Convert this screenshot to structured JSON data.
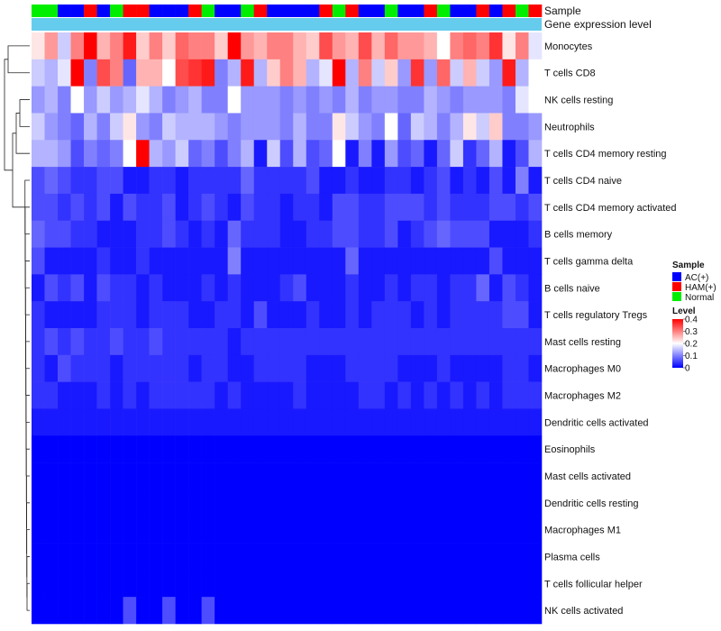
{
  "chart_data": {
    "type": "heatmap",
    "title": "",
    "annotation_tracks": [
      {
        "key": "sample",
        "label": "Sample"
      },
      {
        "key": "gene",
        "label": "Gene expression level"
      }
    ],
    "column_samples": [
      "Normal",
      "Normal",
      "AC(+)",
      "AC(+)",
      "HAM(+)",
      "AC(+)",
      "Normal",
      "HAM(+)",
      "HAM(+)",
      "AC(+)",
      "AC(+)",
      "AC(+)",
      "HAM(+)",
      "Normal",
      "AC(+)",
      "AC(+)",
      "Normal",
      "HAM(+)",
      "AC(+)",
      "AC(+)",
      "AC(+)",
      "AC(+)",
      "HAM(+)",
      "Normal",
      "HAM(+)",
      "AC(+)",
      "AC(+)",
      "Normal",
      "AC(+)",
      "AC(+)",
      "HAM(+)",
      "Normal",
      "AC(+)",
      "AC(+)",
      "HAM(+)",
      "AC(+)",
      "HAM(+)",
      "Normal",
      "HAM(+)"
    ],
    "rows": [
      "Monocytes",
      "T cells CD8",
      "NK cells resting",
      "Neutrophils",
      "T cells CD4 memory resting",
      "T cells CD4 naive",
      "T cells CD4 memory activated",
      "B cells memory",
      "T cells gamma delta",
      "B cells naive",
      "T cells regulatory  Tregs",
      "Mast cells resting",
      "Macrophages M0",
      "Macrophages M2",
      "Dendritic cells activated",
      "Eosinophils",
      "Mast cells activated",
      "Dendritic cells resting",
      "Macrophages M1",
      "Plasma cells",
      "T cells follicular helper",
      "NK cells activated"
    ],
    "values": [
      [
        0.22,
        0.28,
        0.16,
        0.3,
        0.4,
        0.26,
        0.3,
        0.38,
        0.24,
        0.3,
        0.24,
        0.32,
        0.3,
        0.3,
        0.24,
        0.4,
        0.28,
        0.26,
        0.3,
        0.3,
        0.26,
        0.24,
        0.34,
        0.28,
        0.26,
        0.34,
        0.26,
        0.32,
        0.28,
        0.28,
        0.26,
        0.2,
        0.3,
        0.32,
        0.3,
        0.36,
        0.22,
        0.3,
        0.18
      ],
      [
        0.16,
        0.14,
        0.18,
        0.4,
        0.1,
        0.34,
        0.3,
        0.08,
        0.26,
        0.26,
        0.2,
        0.34,
        0.36,
        0.38,
        0.1,
        0.14,
        0.38,
        0.14,
        0.24,
        0.3,
        0.26,
        0.14,
        0.18,
        0.4,
        0.14,
        0.3,
        0.16,
        0.24,
        0.12,
        0.36,
        0.12,
        0.32,
        0.16,
        0.26,
        0.16,
        0.12,
        0.38,
        0.14,
        0.2
      ],
      [
        0.12,
        0.14,
        0.1,
        0.2,
        0.12,
        0.16,
        0.12,
        0.14,
        0.18,
        0.14,
        0.1,
        0.12,
        0.14,
        0.1,
        0.1,
        0.2,
        0.12,
        0.12,
        0.12,
        0.1,
        0.12,
        0.1,
        0.12,
        0.1,
        0.14,
        0.1,
        0.12,
        0.12,
        0.1,
        0.1,
        0.14,
        0.12,
        0.1,
        0.12,
        0.12,
        0.12,
        0.1,
        0.18,
        0.2
      ],
      [
        0.16,
        0.12,
        0.1,
        0.08,
        0.14,
        0.1,
        0.16,
        0.22,
        0.12,
        0.1,
        0.16,
        0.14,
        0.14,
        0.14,
        0.12,
        0.1,
        0.12,
        0.12,
        0.12,
        0.1,
        0.14,
        0.1,
        0.1,
        0.22,
        0.16,
        0.12,
        0.1,
        0.2,
        0.08,
        0.16,
        0.14,
        0.1,
        0.14,
        0.22,
        0.16,
        0.24,
        0.1,
        0.1,
        0.12
      ],
      [
        0.14,
        0.14,
        0.12,
        0.06,
        0.1,
        0.08,
        0.1,
        0.2,
        0.4,
        0.14,
        0.12,
        0.16,
        0.08,
        0.1,
        0.06,
        0.1,
        0.14,
        0.02,
        0.16,
        0.06,
        0.14,
        0.06,
        0.08,
        0.2,
        0.02,
        0.1,
        0.02,
        0.12,
        0.06,
        0.08,
        0.02,
        0.08,
        0.16,
        0.04,
        0.08,
        0.14,
        0.02,
        0.06,
        0.14
      ],
      [
        0.06,
        0.08,
        0.06,
        0.04,
        0.04,
        0.06,
        0.06,
        0.02,
        0.02,
        0.04,
        0.04,
        0.02,
        0.04,
        0.04,
        0.04,
        0.04,
        0.08,
        0.04,
        0.04,
        0.04,
        0.04,
        0.06,
        0.02,
        0.02,
        0.04,
        0.02,
        0.02,
        0.04,
        0.04,
        0.02,
        0.04,
        0.06,
        0.02,
        0.04,
        0.02,
        0.06,
        0.02,
        0.1,
        0.02
      ],
      [
        0.06,
        0.06,
        0.04,
        0.06,
        0.04,
        0.06,
        0.02,
        0.06,
        0.04,
        0.04,
        0.06,
        0.02,
        0.04,
        0.06,
        0.04,
        0.02,
        0.06,
        0.04,
        0.04,
        0.02,
        0.04,
        0.04,
        0.02,
        0.06,
        0.06,
        0.04,
        0.04,
        0.06,
        0.06,
        0.06,
        0.04,
        0.06,
        0.04,
        0.04,
        0.04,
        0.06,
        0.06,
        0.04,
        0.06
      ],
      [
        0.08,
        0.06,
        0.06,
        0.04,
        0.04,
        0.02,
        0.02,
        0.02,
        0.04,
        0.04,
        0.06,
        0.04,
        0.02,
        0.04,
        0.02,
        0.08,
        0.04,
        0.04,
        0.04,
        0.02,
        0.02,
        0.04,
        0.04,
        0.06,
        0.06,
        0.04,
        0.04,
        0.06,
        0.02,
        0.04,
        0.06,
        0.08,
        0.06,
        0.06,
        0.06,
        0.02,
        0.02,
        0.02,
        0.04
      ],
      [
        0.06,
        0.02,
        0.02,
        0.02,
        0.02,
        0.04,
        0.02,
        0.02,
        0.04,
        0.02,
        0.02,
        0.02,
        0.02,
        0.02,
        0.02,
        0.1,
        0.02,
        0.02,
        0.02,
        0.02,
        0.02,
        0.02,
        0.02,
        0.02,
        0.08,
        0.02,
        0.02,
        0.02,
        0.02,
        0.02,
        0.02,
        0.02,
        0.02,
        0.02,
        0.02,
        0.06,
        0.02,
        0.02,
        0.02
      ],
      [
        0.02,
        0.06,
        0.04,
        0.06,
        0.02,
        0.06,
        0.04,
        0.04,
        0.02,
        0.04,
        0.02,
        0.02,
        0.02,
        0.04,
        0.02,
        0.04,
        0.02,
        0.02,
        0.02,
        0.04,
        0.06,
        0.02,
        0.02,
        0.02,
        0.04,
        0.02,
        0.02,
        0.04,
        0.02,
        0.04,
        0.04,
        0.02,
        0.04,
        0.04,
        0.08,
        0.02,
        0.06,
        0.04,
        0.02
      ],
      [
        0.04,
        0.02,
        0.02,
        0.02,
        0.02,
        0.04,
        0.04,
        0.04,
        0.02,
        0.04,
        0.04,
        0.04,
        0.02,
        0.02,
        0.04,
        0.04,
        0.02,
        0.06,
        0.02,
        0.02,
        0.02,
        0.04,
        0.02,
        0.02,
        0.04,
        0.02,
        0.04,
        0.04,
        0.04,
        0.02,
        0.04,
        0.02,
        0.04,
        0.04,
        0.04,
        0.04,
        0.06,
        0.06,
        0.02
      ],
      [
        0.04,
        0.06,
        0.04,
        0.06,
        0.04,
        0.04,
        0.06,
        0.04,
        0.04,
        0.06,
        0.04,
        0.04,
        0.04,
        0.04,
        0.04,
        0.02,
        0.04,
        0.04,
        0.04,
        0.04,
        0.04,
        0.04,
        0.04,
        0.04,
        0.04,
        0.04,
        0.04,
        0.04,
        0.04,
        0.04,
        0.04,
        0.04,
        0.04,
        0.04,
        0.04,
        0.04,
        0.04,
        0.04,
        0.04
      ],
      [
        0.04,
        0.02,
        0.06,
        0.04,
        0.04,
        0.04,
        0.02,
        0.04,
        0.04,
        0.04,
        0.04,
        0.04,
        0.02,
        0.04,
        0.04,
        0.02,
        0.02,
        0.04,
        0.04,
        0.04,
        0.04,
        0.02,
        0.02,
        0.02,
        0.04,
        0.04,
        0.04,
        0.04,
        0.02,
        0.02,
        0.02,
        0.04,
        0.02,
        0.02,
        0.02,
        0.02,
        0.04,
        0.04,
        0.02
      ],
      [
        0.04,
        0.04,
        0.02,
        0.02,
        0.02,
        0.04,
        0.02,
        0.04,
        0.02,
        0.04,
        0.04,
        0.04,
        0.04,
        0.04,
        0.02,
        0.04,
        0.02,
        0.02,
        0.02,
        0.02,
        0.04,
        0.02,
        0.02,
        0.02,
        0.02,
        0.04,
        0.04,
        0.02,
        0.04,
        0.02,
        0.04,
        0.02,
        0.04,
        0.02,
        0.04,
        0.02,
        0.04,
        0.04,
        0.04
      ],
      [
        0.02,
        0.02,
        0.02,
        0.02,
        0.02,
        0.02,
        0.02,
        0.02,
        0.02,
        0.02,
        0.02,
        0.02,
        0.02,
        0.02,
        0.02,
        0.02,
        0.02,
        0.02,
        0.02,
        0.02,
        0.02,
        0.02,
        0.02,
        0.02,
        0.02,
        0.02,
        0.02,
        0.02,
        0.02,
        0.02,
        0.02,
        0.02,
        0.02,
        0.02,
        0.02,
        0.02,
        0.02,
        0.02,
        0.02
      ],
      [
        0,
        0,
        0,
        0,
        0,
        0,
        0,
        0,
        0,
        0,
        0,
        0,
        0,
        0,
        0,
        0,
        0,
        0,
        0,
        0,
        0,
        0,
        0,
        0,
        0,
        0,
        0,
        0,
        0,
        0,
        0,
        0,
        0,
        0,
        0,
        0,
        0,
        0,
        0
      ],
      [
        0,
        0,
        0,
        0,
        0,
        0,
        0,
        0,
        0,
        0,
        0,
        0,
        0,
        0,
        0,
        0,
        0,
        0,
        0,
        0,
        0,
        0,
        0,
        0,
        0,
        0,
        0,
        0,
        0,
        0,
        0,
        0,
        0,
        0,
        0,
        0,
        0,
        0,
        0
      ],
      [
        0,
        0,
        0,
        0,
        0,
        0,
        0,
        0,
        0,
        0,
        0,
        0,
        0,
        0,
        0,
        0,
        0,
        0,
        0,
        0,
        0,
        0,
        0,
        0,
        0,
        0,
        0,
        0,
        0,
        0,
        0,
        0,
        0,
        0,
        0,
        0,
        0,
        0,
        0
      ],
      [
        0,
        0,
        0,
        0,
        0,
        0,
        0,
        0,
        0,
        0,
        0,
        0,
        0,
        0,
        0,
        0,
        0,
        0,
        0,
        0,
        0,
        0,
        0,
        0,
        0,
        0,
        0,
        0,
        0,
        0,
        0,
        0,
        0,
        0,
        0,
        0,
        0,
        0,
        0
      ],
      [
        0,
        0,
        0,
        0,
        0,
        0,
        0,
        0,
        0,
        0,
        0,
        0,
        0,
        0,
        0,
        0,
        0,
        0,
        0,
        0,
        0,
        0,
        0,
        0,
        0,
        0,
        0,
        0,
        0,
        0,
        0,
        0,
        0,
        0,
        0,
        0,
        0,
        0,
        0
      ],
      [
        0,
        0,
        0,
        0,
        0,
        0,
        0,
        0,
        0,
        0,
        0,
        0,
        0,
        0,
        0,
        0,
        0,
        0,
        0,
        0,
        0,
        0,
        0,
        0,
        0,
        0,
        0,
        0,
        0,
        0,
        0,
        0,
        0,
        0,
        0,
        0,
        0,
        0,
        0
      ],
      [
        0,
        0,
        0,
        0,
        0,
        0,
        0,
        0.06,
        0,
        0,
        0.06,
        0,
        0,
        0.06,
        0,
        0,
        0,
        0,
        0,
        0,
        0,
        0,
        0,
        0,
        0,
        0,
        0,
        0,
        0,
        0,
        0,
        0,
        0,
        0,
        0,
        0,
        0,
        0,
        0
      ]
    ],
    "color_scale": {
      "min": 0,
      "mid": 0.2,
      "max": 0.4,
      "low_color": "#0000ff",
      "mid_color": "#ffffff",
      "high_color": "#ff0000"
    },
    "legend": {
      "position": "right",
      "sample_title": "Sample",
      "sample_entries": [
        {
          "label": "AC(+)",
          "color": "#0000ff"
        },
        {
          "label": "HAM(+)",
          "color": "#ff0000"
        },
        {
          "label": "Normal",
          "color": "#00ee00"
        }
      ],
      "level_title": "Level",
      "level_ticks": [
        {
          "label": "0.4",
          "value": 0.4
        },
        {
          "label": "0.3",
          "value": 0.3
        },
        {
          "label": "0.2",
          "value": 0.2
        },
        {
          "label": "0.1",
          "value": 0.1
        },
        {
          "label": "0",
          "value": 0
        }
      ]
    },
    "gene_bar_color": "#66ccee",
    "dendrogram": "rows"
  }
}
